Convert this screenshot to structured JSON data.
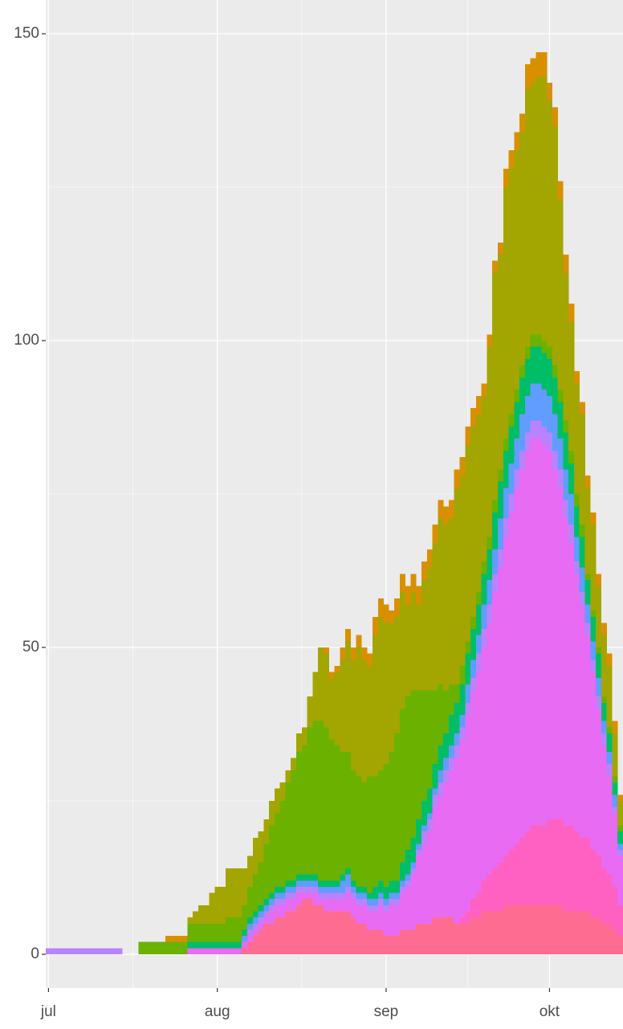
{
  "chart_data": {
    "type": "stacked_bar",
    "categories": [
      "jul",
      null,
      null,
      null,
      null,
      null,
      null,
      null,
      null,
      null,
      null,
      null,
      null,
      null,
      null,
      null,
      null,
      null,
      null,
      null,
      null,
      null,
      null,
      null,
      null,
      null,
      null,
      null,
      null,
      null,
      null,
      "aug",
      null,
      null,
      null,
      null,
      null,
      null,
      null,
      null,
      null,
      null,
      null,
      null,
      null,
      null,
      null,
      null,
      null,
      null,
      null,
      null,
      null,
      null,
      null,
      null,
      null,
      null,
      null,
      null,
      null,
      null,
      "sep",
      null,
      null,
      null,
      null,
      null,
      null,
      null,
      null,
      null,
      null,
      null,
      null,
      null,
      null,
      null,
      null,
      null,
      null,
      null,
      null,
      null,
      null,
      null,
      null,
      null,
      null,
      null,
      null,
      null,
      "okt",
      null,
      null,
      null,
      null,
      null,
      null,
      null,
      null,
      null,
      null,
      null,
      null,
      null
    ],
    "series": [
      {
        "color": "#FF6C91",
        "values": [
          0,
          0,
          0,
          0,
          0,
          0,
          0,
          0,
          0,
          0,
          0,
          0,
          0,
          0,
          0,
          0,
          0,
          0,
          0,
          0,
          0,
          0,
          0,
          0,
          0,
          0,
          0,
          0,
          0,
          0,
          0,
          0,
          0,
          0,
          0,
          0,
          1,
          2,
          3,
          4,
          5,
          5,
          6,
          6,
          7,
          7,
          8,
          9,
          9,
          8,
          8,
          7,
          7,
          7,
          7,
          7,
          6,
          5,
          5,
          4,
          4,
          4,
          3,
          3,
          3,
          4,
          4,
          4,
          5,
          5,
          5,
          6,
          6,
          6,
          6,
          5,
          5,
          5,
          6,
          6,
          7,
          7,
          7,
          7,
          8,
          8,
          8,
          8,
          8,
          8,
          8,
          8,
          8,
          8,
          8,
          7,
          7,
          7,
          7,
          7,
          6,
          6,
          5,
          5,
          4,
          3
        ]
      },
      {
        "color": "#FF61C3",
        "values": [
          0,
          0,
          0,
          0,
          0,
          0,
          0,
          0,
          0,
          0,
          0,
          0,
          0,
          0,
          0,
          0,
          0,
          0,
          0,
          0,
          0,
          0,
          0,
          0,
          0,
          0,
          0,
          0,
          0,
          0,
          0,
          0,
          0,
          0,
          0,
          0,
          0,
          0,
          0,
          0,
          0,
          0,
          0,
          0,
          0,
          0,
          0,
          0,
          0,
          0,
          0,
          0,
          0,
          0,
          0,
          0,
          0,
          0,
          0,
          0,
          0,
          0,
          0,
          0,
          0,
          0,
          0,
          0,
          0,
          0,
          0,
          0,
          0,
          0,
          0,
          0,
          1,
          2,
          3,
          4,
          5,
          6,
          7,
          8,
          8,
          9,
          10,
          11,
          12,
          13,
          13,
          13,
          14,
          14,
          14,
          14,
          14,
          13,
          12,
          12,
          11,
          10,
          9,
          8,
          7,
          5
        ]
      },
      {
        "color": "#E76BF3",
        "values": [
          0,
          0,
          0,
          0,
          0,
          0,
          0,
          0,
          0,
          0,
          0,
          0,
          0,
          0,
          0,
          0,
          0,
          0,
          0,
          0,
          0,
          0,
          0,
          0,
          0,
          0,
          1,
          1,
          1,
          1,
          1,
          1,
          1,
          1,
          1,
          1,
          1,
          1,
          1,
          1,
          1,
          2,
          2,
          2,
          2,
          2,
          2,
          1,
          1,
          2,
          1,
          2,
          2,
          2,
          2,
          3,
          3,
          3,
          3,
          3,
          3,
          4,
          4,
          5,
          5,
          6,
          7,
          9,
          11,
          13,
          15,
          18,
          20,
          22,
          24,
          27,
          29,
          32,
          34,
          36,
          38,
          41,
          45,
          48,
          52,
          55,
          58,
          60,
          62,
          63,
          63,
          62,
          60,
          57,
          54,
          50,
          46,
          42,
          38,
          33,
          29,
          24,
          20,
          16,
          12,
          8
        ]
      },
      {
        "color": "#B983FF",
        "values": [
          1,
          1,
          1,
          1,
          1,
          1,
          1,
          1,
          1,
          1,
          1,
          1,
          1,
          1,
          0,
          0,
          0,
          0,
          0,
          0,
          0,
          0,
          0,
          0,
          0,
          0,
          0,
          0,
          0,
          0,
          0,
          0,
          0,
          0,
          0,
          0,
          0,
          1,
          1,
          1,
          1,
          1,
          1,
          1,
          1,
          1,
          1,
          1,
          1,
          1,
          1,
          1,
          1,
          1,
          1,
          1,
          1,
          1,
          1,
          1,
          1,
          1,
          1,
          1,
          1,
          1,
          1,
          1,
          1,
          2,
          2,
          2,
          2,
          2,
          2,
          2,
          2,
          2,
          2,
          3,
          3,
          3,
          3,
          3,
          3,
          3,
          3,
          3,
          3,
          3,
          3,
          3,
          3,
          3,
          3,
          3,
          3,
          2,
          2,
          2,
          2,
          2,
          2,
          2,
          1,
          1
        ]
      },
      {
        "color": "#619CFF",
        "values": [
          0,
          0,
          0,
          0,
          0,
          0,
          0,
          0,
          0,
          0,
          0,
          0,
          0,
          0,
          0,
          0,
          0,
          0,
          0,
          0,
          0,
          0,
          0,
          0,
          0,
          0,
          0,
          0,
          0,
          0,
          0,
          0,
          0,
          0,
          0,
          0,
          1,
          1,
          1,
          1,
          1,
          1,
          1,
          1,
          1,
          1,
          1,
          1,
          1,
          1,
          1,
          1,
          1,
          1,
          2,
          2,
          1,
          1,
          1,
          1,
          1,
          1,
          1,
          1,
          1,
          1,
          1,
          1,
          1,
          1,
          1,
          1,
          2,
          2,
          2,
          2,
          2,
          3,
          3,
          3,
          4,
          4,
          4,
          5,
          5,
          5,
          5,
          6,
          6,
          6,
          6,
          6,
          6,
          6,
          5,
          5,
          5,
          4,
          4,
          3,
          3,
          3,
          2,
          2,
          2,
          1
        ]
      },
      {
        "color": "#00BE67",
        "values": [
          0,
          0,
          0,
          0,
          0,
          0,
          0,
          0,
          0,
          0,
          0,
          0,
          0,
          0,
          0,
          0,
          0,
          0,
          0,
          0,
          0,
          0,
          0,
          0,
          0,
          0,
          1,
          1,
          1,
          1,
          1,
          1,
          1,
          1,
          1,
          1,
          1,
          1,
          1,
          1,
          1,
          1,
          1,
          1,
          1,
          1,
          1,
          1,
          1,
          1,
          1,
          1,
          1,
          1,
          1,
          1,
          1,
          1,
          1,
          1,
          2,
          2,
          2,
          2,
          2,
          3,
          4,
          4,
          4,
          4,
          4,
          4,
          4,
          4,
          5,
          5,
          5,
          5,
          5,
          5,
          5,
          5,
          6,
          6,
          6,
          6,
          6,
          6,
          6,
          6,
          6,
          6,
          6,
          6,
          6,
          6,
          5,
          5,
          5,
          4,
          4,
          4,
          3,
          3,
          2,
          2
        ]
      },
      {
        "color": "#6BB100",
        "values": [
          0,
          0,
          0,
          0,
          0,
          0,
          0,
          0,
          0,
          0,
          0,
          0,
          0,
          0,
          0,
          0,
          0,
          2,
          2,
          2,
          2,
          2,
          2,
          2,
          2,
          2,
          3,
          3,
          3,
          3,
          3,
          3,
          3,
          4,
          4,
          4,
          4,
          5,
          6,
          7,
          9,
          11,
          12,
          14,
          16,
          18,
          20,
          21,
          24,
          25,
          26,
          25,
          23,
          22,
          20,
          19,
          18,
          18,
          17,
          19,
          18,
          18,
          20,
          21,
          24,
          25,
          25,
          24,
          21,
          18,
          16,
          12,
          10,
          7,
          5,
          3,
          3,
          2,
          2,
          2,
          2,
          2,
          2,
          2,
          2,
          2,
          2,
          2,
          2,
          2,
          2,
          2,
          2,
          2,
          2,
          2,
          2,
          2,
          2,
          1,
          1,
          1,
          1,
          1,
          1,
          1
        ]
      },
      {
        "color": "#A3A500",
        "values": [
          0,
          0,
          0,
          0,
          0,
          0,
          0,
          0,
          0,
          0,
          0,
          0,
          0,
          0,
          0,
          0,
          0,
          0,
          0,
          0,
          0,
          0,
          0,
          0,
          0,
          0,
          1,
          2,
          3,
          3,
          5,
          6,
          6,
          8,
          8,
          8,
          6,
          5,
          6,
          5,
          4,
          4,
          4,
          3,
          2,
          2,
          3,
          3,
          5,
          8,
          12,
          12,
          10,
          12,
          15,
          18,
          18,
          21,
          20,
          18,
          23,
          25,
          23,
          21,
          19,
          19,
          15,
          16,
          14,
          18,
          20,
          24,
          27,
          27,
          27,
          32,
          31,
          32,
          31,
          29,
          27,
          31,
          37,
          35,
          41,
          40,
          39,
          38,
          42,
          41,
          42,
          43,
          40,
          39,
          31,
          24,
          21,
          18,
          18,
          14,
          14,
          10,
          10,
          10,
          7,
          4
        ]
      },
      {
        "color": "#D89000",
        "values": [
          0,
          0,
          0,
          0,
          0,
          0,
          0,
          0,
          0,
          0,
          0,
          0,
          0,
          0,
          0,
          0,
          0,
          0,
          0,
          0,
          0,
          0,
          1,
          1,
          1,
          1,
          0,
          0,
          0,
          0,
          0,
          0,
          0,
          0,
          0,
          0,
          0,
          0,
          0,
          0,
          0,
          0,
          0,
          0,
          0,
          0,
          0,
          0,
          0,
          0,
          0,
          1,
          1,
          1,
          2,
          2,
          2,
          2,
          2,
          2,
          3,
          3,
          3,
          2,
          3,
          3,
          3,
          3,
          3,
          3,
          3,
          3,
          3,
          3,
          3,
          3,
          3,
          3,
          3,
          3,
          2,
          2,
          2,
          2,
          3,
          3,
          3,
          3,
          4,
          4,
          4,
          4,
          3,
          3,
          3,
          3,
          3,
          2,
          2,
          2,
          2,
          2,
          2,
          2,
          2,
          1
        ]
      }
    ],
    "ylim": [
      -5.5,
      155.5
    ],
    "yticks": [
      0,
      50,
      100,
      150
    ],
    "grid": true
  }
}
